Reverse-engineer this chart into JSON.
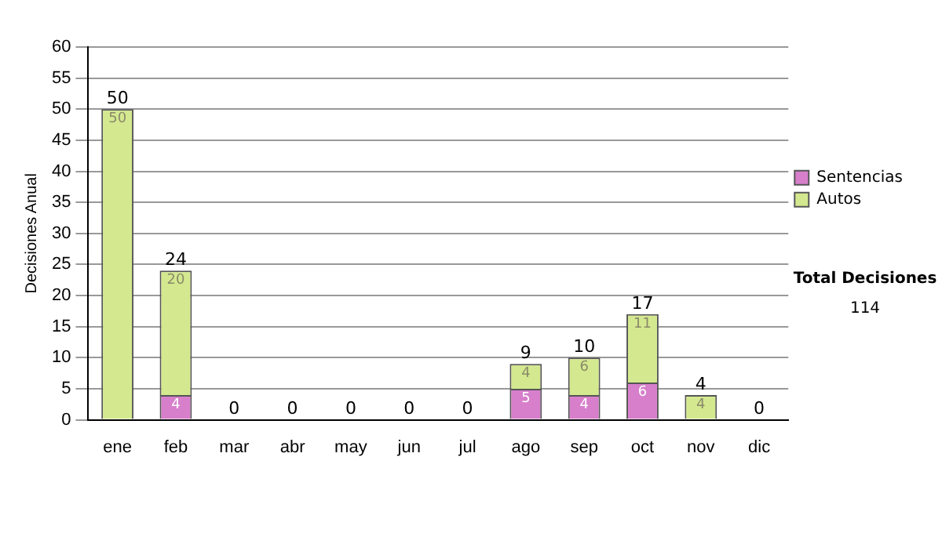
{
  "chart_data": {
    "type": "bar",
    "stacked": true,
    "ylabel": "Decisiones Anual",
    "categories": [
      "ene",
      "feb",
      "mar",
      "abr",
      "may",
      "jun",
      "jul",
      "ago",
      "sep",
      "oct",
      "nov",
      "dic"
    ],
    "series": [
      {
        "name": "Sentencias",
        "color": "#d77fcb",
        "values": [
          0,
          4,
          0,
          0,
          0,
          0,
          0,
          5,
          4,
          6,
          0,
          0
        ],
        "value_labels": [
          null,
          "4",
          null,
          null,
          null,
          null,
          null,
          "5",
          "4",
          "6",
          null,
          null
        ]
      },
      {
        "name": "Autos",
        "color": "#d4e98f",
        "values": [
          50,
          20,
          0,
          0,
          0,
          0,
          0,
          4,
          6,
          11,
          4,
          0
        ],
        "value_labels": [
          "50",
          "20",
          null,
          null,
          null,
          null,
          null,
          "4",
          "6",
          "11",
          "4",
          null
        ]
      }
    ],
    "totals": [
      "50",
      "24",
      "0",
      "0",
      "0",
      "0",
      "0",
      "9",
      "10",
      "17",
      "4",
      "0"
    ],
    "ylim": [
      0,
      60
    ],
    "yticks": [
      0,
      5,
      10,
      15,
      20,
      25,
      30,
      35,
      40,
      45,
      50,
      55,
      60
    ],
    "grid": "y",
    "legend": "right",
    "annotations": [
      "Total Decisiones",
      "114"
    ]
  }
}
